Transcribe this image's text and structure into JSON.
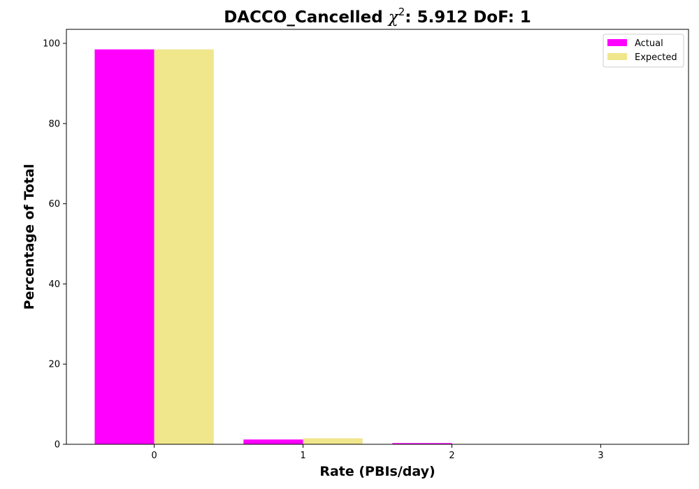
{
  "chart_data": {
    "type": "bar",
    "title_prefix": "DACCO_Cancelled ",
    "title_symbol": "χ",
    "title_superscript": "2",
    "title_suffix": ": 5.912 DoF: 1",
    "xlabel": "Rate (PBIs/day)",
    "ylabel": "Percentage of Total",
    "categories": [
      "0",
      "1",
      "2",
      "3"
    ],
    "x_values": [
      0,
      1,
      2,
      3
    ],
    "xlim": [
      -0.59,
      3.59
    ],
    "ylim": [
      0,
      103.5
    ],
    "y_ticks": [
      0,
      20,
      40,
      60,
      80,
      100
    ],
    "series": [
      {
        "name": "Actual",
        "color": "#ff00ff",
        "values": [
          98.5,
          1.2,
          0.3,
          0.0
        ]
      },
      {
        "name": "Expected",
        "color": "#f0e68c",
        "values": [
          98.5,
          1.5,
          0.0,
          0.0
        ]
      }
    ],
    "legend_position": "top-right",
    "grid": false
  }
}
